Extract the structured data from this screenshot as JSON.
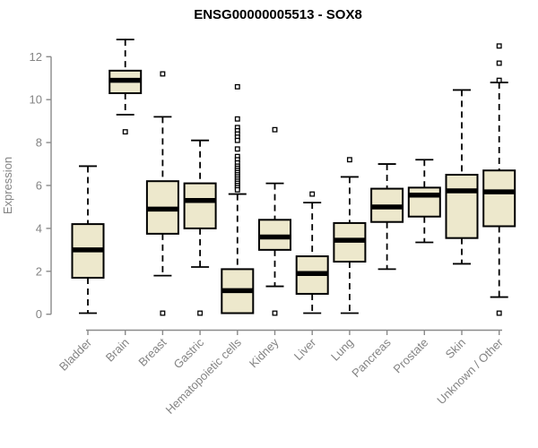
{
  "chart_data": {
    "type": "boxplot",
    "title": "ENSG00000005513 - SOX8",
    "xlabel": "",
    "ylabel": "Expression",
    "ylim": [
      0,
      12.8
    ],
    "yticks": [
      0,
      2,
      4,
      6,
      8,
      10,
      12
    ],
    "grid": false,
    "legend": "none",
    "categories": [
      "Bladder",
      "Brain",
      "Breast",
      "Gastric",
      "Hematopoietic cells",
      "Kidney",
      "Liver",
      "Lung",
      "Pancreas",
      "Prostate",
      "Skin",
      "Unknown / Other"
    ],
    "series": [
      {
        "name": "Bladder",
        "whisker_low": 0.05,
        "q1": 1.7,
        "median": 3.0,
        "q3": 4.2,
        "whisker_high": 6.9,
        "outliers": []
      },
      {
        "name": "Brain",
        "whisker_low": 9.3,
        "q1": 10.3,
        "median": 10.9,
        "q3": 11.35,
        "whisker_high": 12.8,
        "outliers": [
          8.5
        ]
      },
      {
        "name": "Breast",
        "whisker_low": 1.8,
        "q1": 3.75,
        "median": 4.9,
        "q3": 6.2,
        "whisker_high": 9.2,
        "outliers": [
          11.2,
          0.05
        ]
      },
      {
        "name": "Gastric",
        "whisker_low": 2.2,
        "q1": 4.0,
        "median": 5.3,
        "q3": 6.1,
        "whisker_high": 8.1,
        "outliers": [
          0.05
        ]
      },
      {
        "name": "Hematopoietic cells",
        "whisker_low": 0.05,
        "q1": 0.05,
        "median": 1.1,
        "q3": 2.1,
        "whisker_high": 5.6,
        "outliers": [
          10.6,
          9.1,
          8.7,
          8.55,
          8.4,
          8.25,
          8.1,
          7.7,
          7.35,
          7.2,
          7.05,
          6.9,
          6.8,
          6.7,
          6.6,
          6.5,
          6.4,
          6.3,
          6.2,
          6.1,
          6.0,
          5.9,
          5.8
        ]
      },
      {
        "name": "Kidney",
        "whisker_low": 1.3,
        "q1": 3.0,
        "median": 3.6,
        "q3": 4.4,
        "whisker_high": 6.1,
        "outliers": [
          8.6,
          0.05
        ]
      },
      {
        "name": "Liver",
        "whisker_low": 0.05,
        "q1": 0.95,
        "median": 1.9,
        "q3": 2.7,
        "whisker_high": 5.2,
        "outliers": [
          5.6
        ]
      },
      {
        "name": "Lung",
        "whisker_low": 0.05,
        "q1": 2.45,
        "median": 3.45,
        "q3": 4.25,
        "whisker_high": 6.4,
        "outliers": [
          7.2
        ]
      },
      {
        "name": "Pancreas",
        "whisker_low": 2.1,
        "q1": 4.3,
        "median": 5.0,
        "q3": 5.85,
        "whisker_high": 7.0,
        "outliers": []
      },
      {
        "name": "Prostate",
        "whisker_low": 3.35,
        "q1": 4.55,
        "median": 5.55,
        "q3": 5.9,
        "whisker_high": 7.2,
        "outliers": []
      },
      {
        "name": "Skin",
        "whisker_low": 2.35,
        "q1": 3.55,
        "median": 5.75,
        "q3": 6.5,
        "whisker_high": 10.45,
        "outliers": []
      },
      {
        "name": "Unknown / Other",
        "whisker_low": 0.8,
        "q1": 4.1,
        "median": 5.7,
        "q3": 6.7,
        "whisker_high": 10.8,
        "outliers": [
          12.5,
          11.7,
          10.9,
          0.05
        ]
      }
    ],
    "style": {
      "box_fill": "#EDE8CC",
      "box_stroke": "#000000",
      "median_color": "#000000",
      "whisker_color": "#000000",
      "outlier_color": "#000000",
      "axis_color": "#8A8A8A",
      "label_color": "#848484",
      "title_color": "#000000",
      "background": "#FFFFFF"
    }
  }
}
